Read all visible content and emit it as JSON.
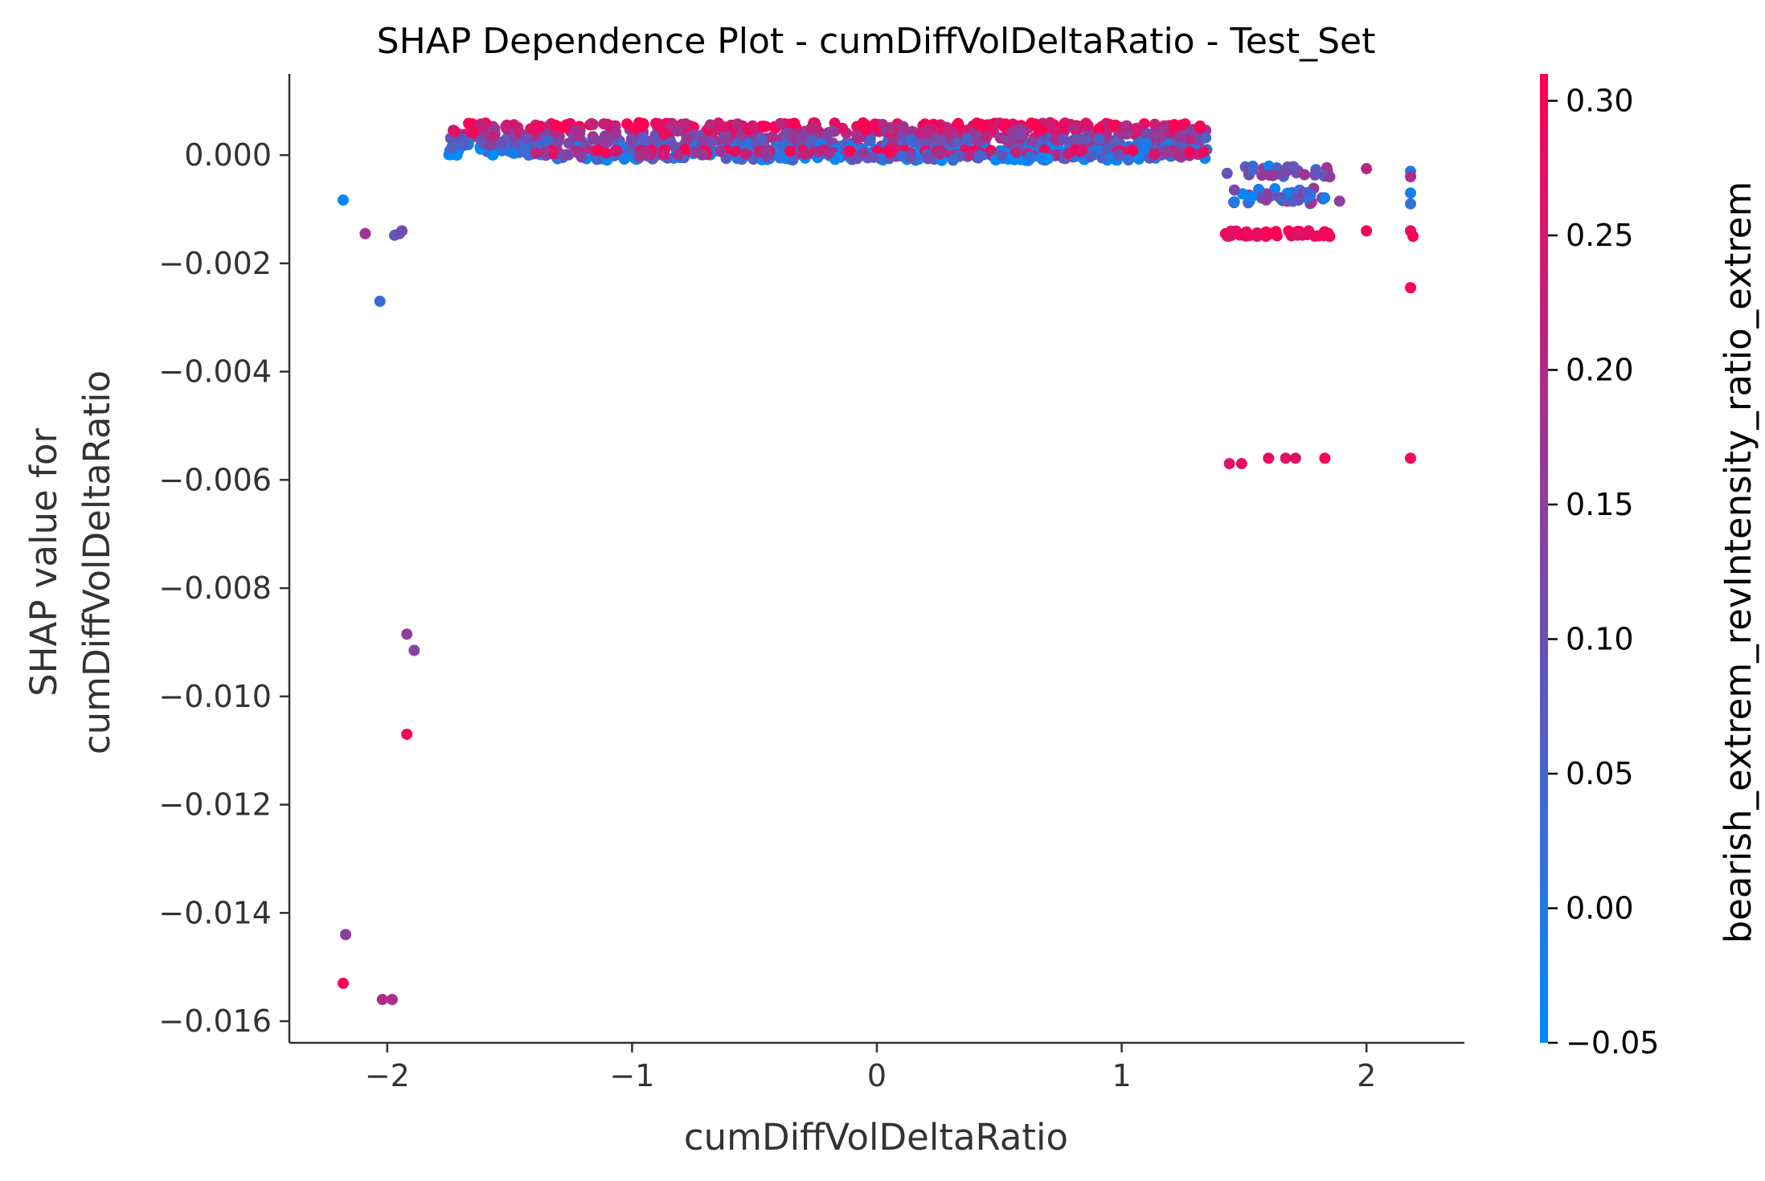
{
  "chart_data": {
    "type": "scatter",
    "title": "SHAP Dependence Plot - cumDiffVolDeltaRatio - Test_Set",
    "xlabel": "cumDiffVolDeltaRatio",
    "ylabel": [
      "SHAP value for",
      "cumDiffVolDeltaRatio"
    ],
    "xlim": [
      -2.4,
      2.4
    ],
    "ylim": [
      -0.0164,
      0.0015
    ],
    "x_ticks": [
      -2,
      -1,
      0,
      1,
      2
    ],
    "x_tick_labels": [
      "−2",
      "−1",
      "0",
      "1",
      "2"
    ],
    "y_ticks": [
      0.0,
      -0.002,
      -0.004,
      -0.006,
      -0.008,
      -0.01,
      -0.012,
      -0.014,
      -0.016
    ],
    "y_tick_labels": [
      "0.000",
      "−0.002",
      "−0.004",
      "−0.006",
      "−0.008",
      "−0.010",
      "−0.012",
      "−0.014",
      "−0.016"
    ],
    "colorbar": {
      "label": "bearish_extrem_revIntensity_ratio_extrem",
      "range": [
        -0.05,
        0.31
      ],
      "ticks": [
        0.3,
        0.25,
        0.2,
        0.15,
        0.1,
        0.05,
        0.0,
        -0.05
      ],
      "tick_labels": [
        "0.30",
        "0.25",
        "0.20",
        "0.15",
        "0.10",
        "0.05",
        "0.00",
        "−0.05"
      ],
      "colors": [
        "#008bfb",
        "#ff0052"
      ]
    },
    "grid": false,
    "points": [
      {
        "x": -2.18,
        "y": -0.00083,
        "c": -0.04
      },
      {
        "x": -2.09,
        "y": -0.00145,
        "c": 0.17
      },
      {
        "x": -1.97,
        "y": -0.00148,
        "c": 0.08
      },
      {
        "x": -1.95,
        "y": -0.00145,
        "c": 0.1
      },
      {
        "x": -1.94,
        "y": -0.0014,
        "c": 0.11
      },
      {
        "x": -2.03,
        "y": -0.0027,
        "c": 0.03
      },
      {
        "x": -1.92,
        "y": -0.00885,
        "c": 0.15
      },
      {
        "x": -1.89,
        "y": -0.00915,
        "c": 0.14
      },
      {
        "x": -1.92,
        "y": -0.0107,
        "c": 0.3
      },
      {
        "x": -2.17,
        "y": -0.0144,
        "c": 0.15
      },
      {
        "x": -2.18,
        "y": -0.0153,
        "c": 0.3
      },
      {
        "x": -2.02,
        "y": -0.0156,
        "c": 0.2
      },
      {
        "x": -1.98,
        "y": -0.0156,
        "c": 0.19
      },
      {
        "x": 1.44,
        "y": -0.0057,
        "c": 0.26
      },
      {
        "x": 1.49,
        "y": -0.0057,
        "c": 0.28
      },
      {
        "x": 1.6,
        "y": -0.0056,
        "c": 0.28
      },
      {
        "x": 1.67,
        "y": -0.0056,
        "c": 0.27
      },
      {
        "x": 1.71,
        "y": -0.0056,
        "c": 0.26
      },
      {
        "x": 1.83,
        "y": -0.0056,
        "c": 0.29
      },
      {
        "x": 2.18,
        "y": -0.0056,
        "c": 0.29
      },
      {
        "x": 2.18,
        "y": -0.00245,
        "c": 0.3
      },
      {
        "x": 2.18,
        "y": -0.0003,
        "c": 0.0
      },
      {
        "x": 2.18,
        "y": -0.0004,
        "c": 0.19
      },
      {
        "x": 2.18,
        "y": -0.0007,
        "c": -0.02
      },
      {
        "x": 2.18,
        "y": -0.0009,
        "c": 0.02
      },
      {
        "x": 2.18,
        "y": -0.0014,
        "c": 0.29
      },
      {
        "x": 2.19,
        "y": -0.0015,
        "c": 0.3
      },
      {
        "x": 2.0,
        "y": -0.00025,
        "c": 0.21
      },
      {
        "x": 2.0,
        "y": -0.0014,
        "c": 0.3
      },
      {
        "x": 1.89,
        "y": -0.00085,
        "c": 0.14
      },
      {
        "x": 1.85,
        "y": -0.0004,
        "c": 0.15
      },
      {
        "x": 1.85,
        "y": -0.0015,
        "c": 0.29
      }
    ],
    "bands": [
      {
        "x0": -1.75,
        "x1": 1.35,
        "y0": 0.0,
        "y1": 0.0006,
        "n": 950
      },
      {
        "x0": -1.4,
        "x1": 1.35,
        "y0": -0.0001,
        "y1": 0.0001,
        "n": 250
      },
      {
        "x0": 1.42,
        "x1": 1.85,
        "y0": -0.0004,
        "y1": -0.0002,
        "n": 30
      },
      {
        "x0": 1.44,
        "x1": 1.85,
        "y0": -0.0009,
        "y1": -0.0006,
        "n": 40
      },
      {
        "x0": 1.42,
        "x1": 1.85,
        "y0": -0.0015,
        "y1": -0.0014,
        "n": 45
      }
    ]
  }
}
